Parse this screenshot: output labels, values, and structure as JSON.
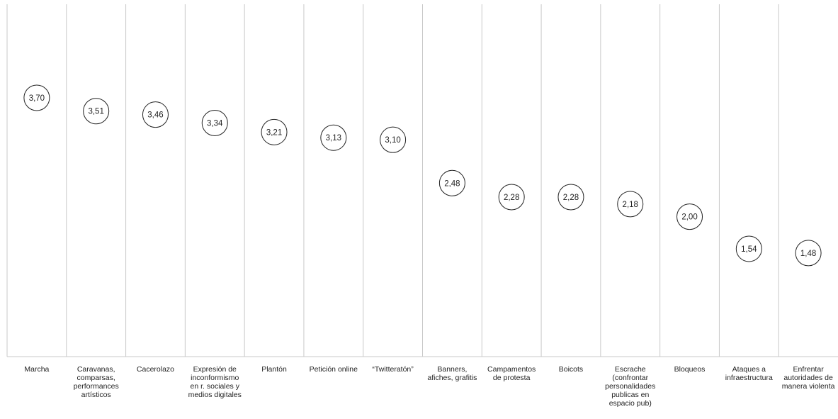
{
  "chart_data": {
    "type": "scatter",
    "title": "",
    "xlabel": "",
    "ylabel": "",
    "categories": [
      "Marcha",
      "Caravanas, comparsas, performances artísticos",
      "Cacerolazo",
      "Expresión de inconformismo en r. sociales y medios digitales",
      "Plantón",
      "Petición online",
      "“Twitteratón”",
      "Banners, afiches, grafitis",
      "Campamentos de protesta",
      "Boicots",
      "Escrache (confrontar personalidades publicas en espacio pub)",
      "Bloqueos",
      "Ataques a infraestructura",
      "Enfrentar autoridades de manera violenta"
    ],
    "category_lines": [
      [
        "Marcha"
      ],
      [
        "Caravanas,",
        "comparsas,",
        "performances",
        "artísticos"
      ],
      [
        "Cacerolazo"
      ],
      [
        "Expresión de",
        "inconformismo",
        "en r. sociales y",
        "medios digitales"
      ],
      [
        "Plantón"
      ],
      [
        "Petición online"
      ],
      [
        "“Twitteratón”"
      ],
      [
        "Banners,",
        "afiches, grafitis"
      ],
      [
        "Campamentos",
        "de protesta"
      ],
      [
        "Boicots"
      ],
      [
        "Escrache",
        "(confrontar",
        "personalidades",
        "publicas en",
        "espacio pub)"
      ],
      [
        "Bloqueos"
      ],
      [
        "Ataques a",
        "infraestructura"
      ],
      [
        "Enfrentar",
        "autoridades de",
        "manera violenta"
      ]
    ],
    "values": [
      3.7,
      3.51,
      3.46,
      3.34,
      3.21,
      3.13,
      3.1,
      2.48,
      2.28,
      2.28,
      2.18,
      2.0,
      1.54,
      1.48
    ],
    "value_labels": [
      "3,70",
      "3,51",
      "3,46",
      "3,34",
      "3,21",
      "3,13",
      "3,10",
      "2,48",
      "2,28",
      "2,28",
      "2,18",
      "2,00",
      "1,54",
      "1,48"
    ],
    "marker": "circle",
    "grid": "vertical separators between categories",
    "legend": "none",
    "colors": {
      "line": "#c8c8c8",
      "marker_stroke": "#222222",
      "text": "#222222"
    }
  }
}
